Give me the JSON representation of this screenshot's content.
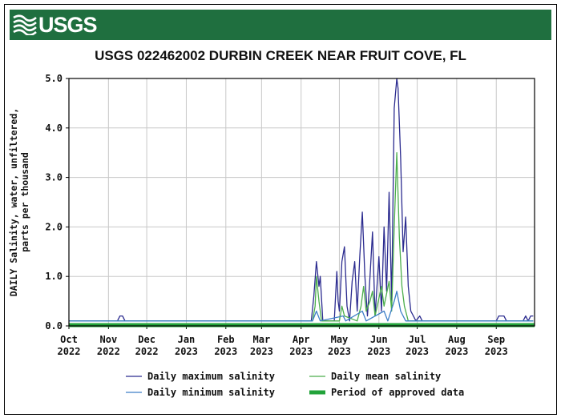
{
  "header": {
    "logo_text": "USGS",
    "title": "USGS 022462002 DURBIN CREEK NEAR FRUIT COVE, FL"
  },
  "colors": {
    "banner": "#1f6f3f",
    "max_line": "#2b2b8f",
    "min_line": "#3d7fc8",
    "mean_line": "#4cae4c",
    "approved_bar": "#22a33a",
    "grid": "#c8c8c8"
  },
  "chart_data": {
    "type": "line",
    "title": "USGS 022462002 DURBIN CREEK NEAR FRUIT COVE, FL",
    "ylabel": "DAILY Salinity, water, unfiltered, parts per thousand",
    "ylabel_lines": [
      "DAILY Salinity, water, unfiltered,",
      "parts per thousand"
    ],
    "xlabel": "",
    "ylim": [
      0,
      5.0
    ],
    "yticks": [
      "0.0",
      "1.0",
      "2.0",
      "3.0",
      "4.0",
      "5.0"
    ],
    "xticks": [
      {
        "month": "Oct",
        "year": "2022"
      },
      {
        "month": "Nov",
        "year": "2022"
      },
      {
        "month": "Dec",
        "year": "2022"
      },
      {
        "month": "Jan",
        "year": "2023"
      },
      {
        "month": "Feb",
        "year": "2023"
      },
      {
        "month": "Mar",
        "year": "2023"
      },
      {
        "month": "Apr",
        "year": "2023"
      },
      {
        "month": "May",
        "year": "2023"
      },
      {
        "month": "Jun",
        "year": "2023"
      },
      {
        "month": "Jul",
        "year": "2023"
      },
      {
        "month": "Aug",
        "year": "2023"
      },
      {
        "month": "Sep",
        "year": "2023"
      }
    ],
    "grid": true,
    "legend_placement": "bottom",
    "series": [
      {
        "name": "Daily maximum salinity",
        "points": [
          [
            "2022-10-01",
            0.1
          ],
          [
            "2022-11-08",
            0.1
          ],
          [
            "2022-11-10",
            0.2
          ],
          [
            "2022-11-12",
            0.2
          ],
          [
            "2022-11-14",
            0.1
          ],
          [
            "2023-04-09",
            0.1
          ],
          [
            "2023-04-11",
            0.6
          ],
          [
            "2023-04-13",
            1.3
          ],
          [
            "2023-04-15",
            0.8
          ],
          [
            "2023-04-16",
            1.0
          ],
          [
            "2023-04-18",
            0.1
          ],
          [
            "2023-04-27",
            0.1
          ],
          [
            "2023-04-29",
            1.1
          ],
          [
            "2023-04-30",
            0.5
          ],
          [
            "2023-05-01",
            0.3
          ],
          [
            "2023-05-03",
            1.3
          ],
          [
            "2023-05-05",
            1.6
          ],
          [
            "2023-05-07",
            0.4
          ],
          [
            "2023-05-09",
            0.1
          ],
          [
            "2023-05-11",
            0.9
          ],
          [
            "2023-05-13",
            1.3
          ],
          [
            "2023-05-15",
            0.3
          ],
          [
            "2023-05-17",
            1.4
          ],
          [
            "2023-05-19",
            2.3
          ],
          [
            "2023-05-21",
            1.0
          ],
          [
            "2023-05-23",
            0.2
          ],
          [
            "2023-05-25",
            1.0
          ],
          [
            "2023-05-27",
            1.9
          ],
          [
            "2023-05-29",
            0.2
          ],
          [
            "2023-06-01",
            1.4
          ],
          [
            "2023-06-03",
            0.3
          ],
          [
            "2023-06-05",
            2.0
          ],
          [
            "2023-06-07",
            0.7
          ],
          [
            "2023-06-09",
            2.7
          ],
          [
            "2023-06-11",
            0.5
          ],
          [
            "2023-06-13",
            4.4
          ],
          [
            "2023-06-15",
            5.0
          ],
          [
            "2023-06-16",
            4.8
          ],
          [
            "2023-06-18",
            3.4
          ],
          [
            "2023-06-20",
            1.5
          ],
          [
            "2023-06-22",
            2.2
          ],
          [
            "2023-06-24",
            0.8
          ],
          [
            "2023-06-26",
            0.3
          ],
          [
            "2023-06-28",
            0.2
          ],
          [
            "2023-06-30",
            0.1
          ],
          [
            "2023-07-03",
            0.2
          ],
          [
            "2023-07-05",
            0.1
          ],
          [
            "2023-09-01",
            0.1
          ],
          [
            "2023-09-03",
            0.2
          ],
          [
            "2023-09-05",
            0.2
          ],
          [
            "2023-09-07",
            0.2
          ],
          [
            "2023-09-09",
            0.1
          ],
          [
            "2023-09-22",
            0.1
          ],
          [
            "2023-09-24",
            0.2
          ],
          [
            "2023-09-26",
            0.1
          ],
          [
            "2023-09-28",
            0.2
          ],
          [
            "2023-09-30",
            0.2
          ]
        ]
      },
      {
        "name": "Daily minimum salinity",
        "points": [
          [
            "2022-10-01",
            0.1
          ],
          [
            "2023-04-10",
            0.1
          ],
          [
            "2023-04-13",
            0.3
          ],
          [
            "2023-04-16",
            0.1
          ],
          [
            "2023-05-04",
            0.2
          ],
          [
            "2023-05-06",
            0.1
          ],
          [
            "2023-05-19",
            0.3
          ],
          [
            "2023-05-22",
            0.1
          ],
          [
            "2023-06-05",
            0.3
          ],
          [
            "2023-06-08",
            0.1
          ],
          [
            "2023-06-13",
            0.5
          ],
          [
            "2023-06-15",
            0.7
          ],
          [
            "2023-06-18",
            0.3
          ],
          [
            "2023-06-22",
            0.1
          ],
          [
            "2023-09-30",
            0.1
          ]
        ]
      },
      {
        "name": "Daily mean salinity",
        "points": [
          [
            "2022-10-01",
            0.1
          ],
          [
            "2023-04-10",
            0.1
          ],
          [
            "2023-04-12",
            0.4
          ],
          [
            "2023-04-13",
            1.0
          ],
          [
            "2023-04-15",
            0.5
          ],
          [
            "2023-04-17",
            0.1
          ],
          [
            "2023-05-01",
            0.1
          ],
          [
            "2023-05-03",
            0.4
          ],
          [
            "2023-05-05",
            0.2
          ],
          [
            "2023-05-15",
            0.1
          ],
          [
            "2023-05-18",
            0.4
          ],
          [
            "2023-05-20",
            0.8
          ],
          [
            "2023-05-22",
            0.3
          ],
          [
            "2023-05-25",
            0.5
          ],
          [
            "2023-05-27",
            0.7
          ],
          [
            "2023-05-29",
            0.2
          ],
          [
            "2023-06-03",
            0.8
          ],
          [
            "2023-06-05",
            0.4
          ],
          [
            "2023-06-09",
            0.9
          ],
          [
            "2023-06-11",
            0.3
          ],
          [
            "2023-06-13",
            2.0
          ],
          [
            "2023-06-15",
            3.5
          ],
          [
            "2023-06-17",
            1.8
          ],
          [
            "2023-06-19",
            0.8
          ],
          [
            "2023-06-21",
            0.4
          ],
          [
            "2023-06-24",
            0.1
          ],
          [
            "2023-09-30",
            0.1
          ]
        ]
      },
      {
        "name": "Period of approved data",
        "range": [
          "2022-10-01",
          "2023-09-30"
        ],
        "value": 0.0
      }
    ]
  }
}
